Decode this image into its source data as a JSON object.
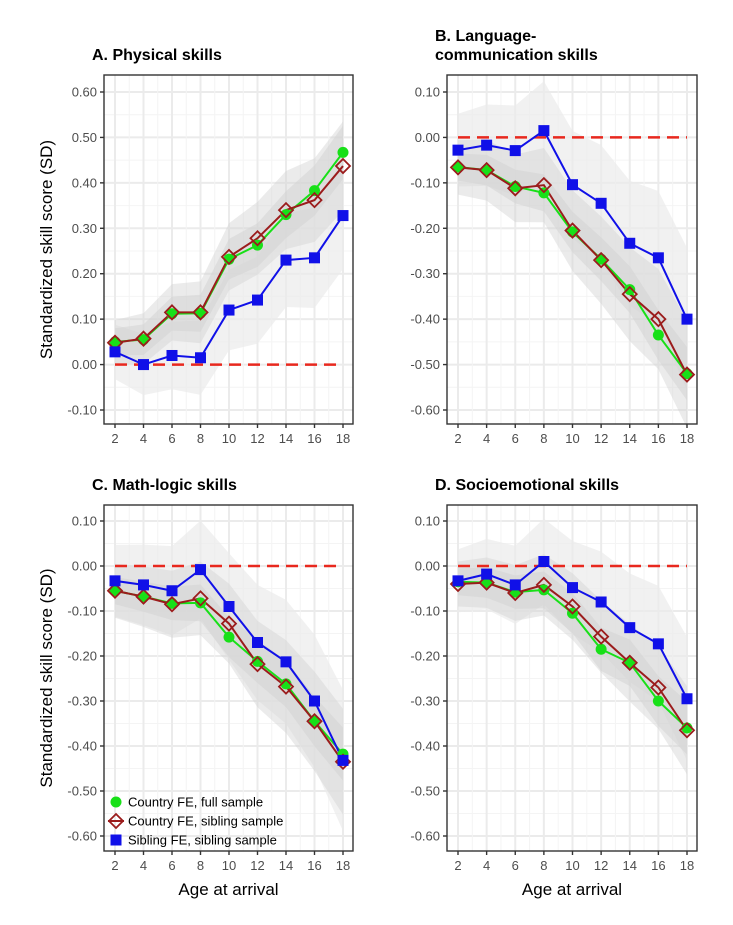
{
  "figure": {
    "ylabel": "Standardized skill score (SD)",
    "xlabel": "Age at arrival"
  },
  "legend": [
    {
      "label": "Country FE, full sample",
      "color": "#18e018",
      "marker": "circle"
    },
    {
      "label": "Country FE, sibling sample",
      "color": "#9b1c1c",
      "marker": "diamond-open"
    },
    {
      "label": "Sibling FE, sibling sample",
      "color": "#1010e8",
      "marker": "square"
    }
  ],
  "colors": {
    "reference_line": "#e8281e",
    "band_light": "#ebebeb",
    "band_dark": "#d3d3d3",
    "grid": "#ebebeb",
    "axis": "#333333"
  },
  "chart_data": [
    {
      "type": "line",
      "title_lines": [
        "A. Physical skills"
      ],
      "xlabel": "",
      "ylabel": "Standardized skill score (SD)",
      "x": [
        2,
        4,
        6,
        8,
        10,
        12,
        14,
        16,
        18
      ],
      "ylim": [
        -0.13,
        0.63
      ],
      "yticks": [
        0.6,
        0.5,
        0.4,
        0.3,
        0.2,
        0.1,
        0.0,
        -0.1
      ],
      "ytick_labels": [
        "0.60",
        "0.50",
        "0.40",
        "0.30",
        "0.20",
        "0.10",
        "0.00",
        "-0.10"
      ],
      "xtick_labels": [
        "2",
        "4",
        "6",
        "8",
        "10",
        "12",
        "14",
        "16",
        "18"
      ],
      "reference_y": 0,
      "series": [
        {
          "name": "Country FE, full sample",
          "values": [
            0.05,
            0.055,
            0.112,
            0.113,
            0.232,
            0.263,
            0.33,
            0.383,
            0.467
          ],
          "ci": 0.03
        },
        {
          "name": "Country FE, sibling sample",
          "values": [
            0.048,
            0.057,
            0.115,
            0.115,
            0.237,
            0.278,
            0.34,
            0.362,
            0.437
          ],
          "ci": 0.05
        },
        {
          "name": "Sibling FE, sibling sample",
          "values": [
            0.028,
            0.0,
            0.02,
            0.015,
            0.12,
            0.142,
            0.23,
            0.235,
            0.328
          ],
          "ci": 0.06
        }
      ],
      "show_ylabel": true,
      "show_xlabel": false,
      "show_legend": false
    },
    {
      "type": "line",
      "title_lines": [
        "B. Language-",
        "communication skills"
      ],
      "x": [
        2,
        4,
        6,
        8,
        10,
        12,
        14,
        16,
        18
      ],
      "ylim": [
        -0.63,
        0.13
      ],
      "yticks": [
        0.1,
        0.0,
        -0.1,
        -0.2,
        -0.3,
        -0.4,
        -0.5,
        -0.6
      ],
      "ytick_labels": [
        "0.10",
        "0.00",
        "-0.10",
        "-0.20",
        "-0.30",
        "-0.40",
        "-0.50",
        "-0.60"
      ],
      "xtick_labels": [
        "2",
        "4",
        "6",
        "8",
        "10",
        "12",
        "14",
        "16",
        "18"
      ],
      "reference_y": 0,
      "series": [
        {
          "name": "Country FE, full sample",
          "values": [
            -0.065,
            -0.072,
            -0.108,
            -0.122,
            -0.208,
            -0.268,
            -0.335,
            -0.435,
            -0.52
          ],
          "ci": 0.03
        },
        {
          "name": "Country FE, sibling sample",
          "values": [
            -0.066,
            -0.072,
            -0.112,
            -0.105,
            -0.205,
            -0.27,
            -0.345,
            -0.4,
            -0.522
          ],
          "ci": 0.06
        },
        {
          "name": "Sibling FE, sibling sample",
          "values": [
            -0.028,
            -0.017,
            -0.029,
            0.015,
            -0.104,
            -0.145,
            -0.233,
            -0.265,
            -0.4
          ],
          "ci": 0.08
        }
      ],
      "show_ylabel": false,
      "show_xlabel": false,
      "show_legend": false
    },
    {
      "type": "line",
      "title_lines": [
        "C. Math-logic skills"
      ],
      "x": [
        2,
        4,
        6,
        8,
        10,
        12,
        14,
        16,
        18
      ],
      "ylim": [
        -0.63,
        0.13
      ],
      "yticks": [
        0.1,
        0.0,
        -0.1,
        -0.2,
        -0.3,
        -0.4,
        -0.5,
        -0.6
      ],
      "ytick_labels": [
        "0.10",
        "0.00",
        "-0.10",
        "-0.20",
        "-0.30",
        "-0.40",
        "-0.50",
        "-0.60"
      ],
      "xtick_labels": [
        "2",
        "4",
        "6",
        "8",
        "10",
        "12",
        "14",
        "16",
        "18"
      ],
      "reference_y": 0,
      "series": [
        {
          "name": "Country FE, full sample",
          "values": [
            -0.055,
            -0.068,
            -0.083,
            -0.082,
            -0.158,
            -0.212,
            -0.262,
            -0.345,
            -0.418
          ],
          "ci": 0.03
        },
        {
          "name": "Country FE, sibling sample",
          "values": [
            -0.055,
            -0.068,
            -0.085,
            -0.072,
            -0.128,
            -0.218,
            -0.268,
            -0.345,
            -0.435
          ],
          "ci": 0.06
        },
        {
          "name": "Sibling FE, sibling sample",
          "values": [
            -0.033,
            -0.042,
            -0.055,
            -0.008,
            -0.09,
            -0.17,
            -0.213,
            -0.3,
            -0.432
          ],
          "ci": 0.08
        }
      ],
      "show_ylabel": true,
      "show_xlabel": true,
      "show_legend": true
    },
    {
      "type": "line",
      "title_lines": [
        "D. Socioemotional skills"
      ],
      "x": [
        2,
        4,
        6,
        8,
        10,
        12,
        14,
        16,
        18
      ],
      "ylim": [
        -0.63,
        0.13
      ],
      "yticks": [
        0.1,
        0.0,
        -0.1,
        -0.2,
        -0.3,
        -0.4,
        -0.5,
        -0.6
      ],
      "ytick_labels": [
        "0.10",
        "0.00",
        "-0.10",
        "-0.20",
        "-0.30",
        "-0.40",
        "-0.50",
        "-0.60"
      ],
      "xtick_labels": [
        "2",
        "4",
        "6",
        "8",
        "10",
        "12",
        "14",
        "16",
        "18"
      ],
      "reference_y": 0,
      "series": [
        {
          "name": "Country FE, full sample",
          "values": [
            -0.035,
            -0.037,
            -0.058,
            -0.053,
            -0.105,
            -0.185,
            -0.215,
            -0.3,
            -0.36
          ],
          "ci": 0.03
        },
        {
          "name": "Country FE, sibling sample",
          "values": [
            -0.04,
            -0.037,
            -0.06,
            -0.042,
            -0.09,
            -0.157,
            -0.215,
            -0.27,
            -0.365
          ],
          "ci": 0.05
        },
        {
          "name": "Sibling FE, sibling sample",
          "values": [
            -0.033,
            -0.018,
            -0.042,
            0.01,
            -0.048,
            -0.08,
            -0.137,
            -0.173,
            -0.295
          ],
          "ci": 0.07
        }
      ],
      "show_ylabel": false,
      "show_xlabel": true,
      "show_legend": false
    }
  ]
}
